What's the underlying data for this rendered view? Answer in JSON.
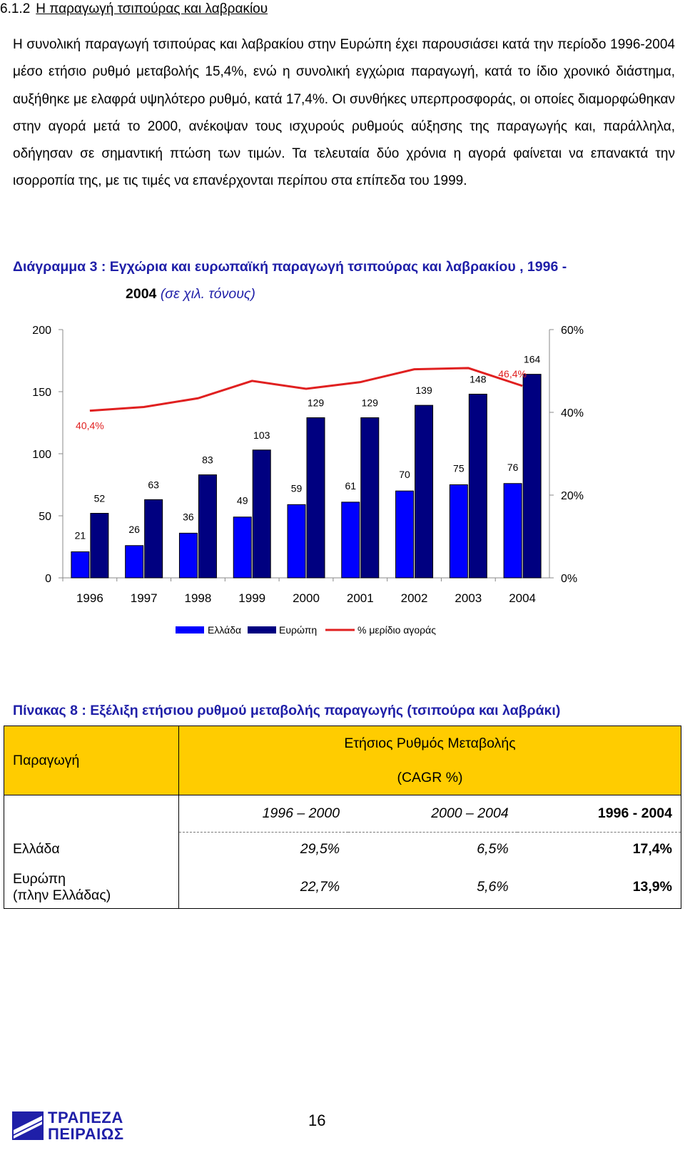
{
  "section": {
    "number": "6.1.2",
    "title": "Η παραγωγή τσιπούρας και λαβρακίου"
  },
  "body": {
    "paragraph": "Η συνολική παραγωγή τσιπούρας και λαβρακίου στην Ευρώπη έχει παρουσιάσει κατά την περίοδο 1996-2004 μέσο ετήσιο ρυθμό μεταβολής 15,4%, ενώ η συνολική εγχώρια παραγωγή, κατά το ίδιο χρονικό διάστημα, αυξήθηκε με ελαφρά υψηλότερο ρυθμό, κατά 17,4%. Οι συνθήκες υπερπροσφοράς, οι οποίες διαμορφώθηκαν στην αγορά μετά το 2000, ανέκοψαν τους ισχυρούς ρυθμούς αύξησης της παραγωγής και, παράλληλα, οδήγησαν σε σημαντική πτώση των τιμών. Τα τελευταία δύο χρόνια η αγορά φαίνεται να επανακτά την ισορροπία της, με τις τιμές να επανέρχονται περίπου στα επίπεδα του 1999."
  },
  "diagram": {
    "title_line1": "Διάγραμμα 3 : Εγχώρια και ευρωπαϊκή παραγωγή τσιπούρας και λαβρακίου , 1996 -",
    "title_line2": "2004",
    "title_unit": "(σε χιλ. τόνους)"
  },
  "chart_data": {
    "type": "bar",
    "categories": [
      "1996",
      "1997",
      "1998",
      "1999",
      "2000",
      "2001",
      "2002",
      "2003",
      "2004"
    ],
    "series": [
      {
        "name": "Ελλάδα",
        "type": "bar",
        "axis": "left",
        "color": "#0000ff",
        "values": [
          21,
          26,
          36,
          49,
          59,
          61,
          70,
          75,
          76
        ]
      },
      {
        "name": "Ευρώπη",
        "type": "bar",
        "axis": "left",
        "color": "#000080",
        "values": [
          52,
          63,
          83,
          103,
          129,
          129,
          139,
          148,
          164
        ]
      },
      {
        "name": "% μερίδιο αγοράς",
        "type": "line",
        "axis": "right",
        "color": "#e02020",
        "values": [
          40.4,
          41.3,
          43.4,
          47.6,
          45.7,
          47.3,
          50.4,
          50.7,
          46.4
        ]
      }
    ],
    "data_labels": {
      "Ελλάδα": [
        "21",
        "26",
        "36",
        "49",
        "59",
        "61",
        "70",
        "75",
        "76"
      ],
      "Ευρώπη": [
        "52",
        "63",
        "83",
        "103",
        "129",
        "129",
        "139",
        "148",
        "164"
      ],
      "% μερίδιο αγοράς": [
        "40,4%",
        "",
        "",
        "",
        "",
        "",
        "",
        "",
        "46,4%"
      ]
    },
    "y_left": {
      "ticks": [
        "0",
        "50",
        "100",
        "150",
        "200"
      ],
      "ylim": [
        0,
        200
      ]
    },
    "y_right": {
      "ticks": [
        "0%",
        "20%",
        "40%",
        "60%"
      ],
      "ylim": [
        0,
        60
      ]
    },
    "grid": false,
    "legend_position": "bottom"
  },
  "table": {
    "title": "Πίνακας 8 : Εξέλιξη ετήσιου ρυθμού μεταβολής παραγωγής (τσιπούρα και λαβράκι)",
    "row_header": "Παραγωγή",
    "header_line1": "Ετήσιος Ρυθμός Μεταβολής",
    "header_line2": "(CAGR %)",
    "periods": [
      "1996 – 2000",
      "2000 – 2004",
      "1996 - 2004"
    ],
    "rows": [
      {
        "label": "Ελλάδα",
        "label2": "",
        "values": [
          "29,5%",
          "6,5%",
          "17,4%"
        ]
      },
      {
        "label": "Ευρώπη",
        "label2": "(πλην Ελλάδας)",
        "values": [
          "22,7%",
          "5,6%",
          "13,9%"
        ]
      }
    ]
  },
  "footer": {
    "page_number": "16",
    "logo_line1": "ΤΡΑΠΕΖΑ",
    "logo_line2": "ΠΕΙΡΑΙΩΣ"
  }
}
